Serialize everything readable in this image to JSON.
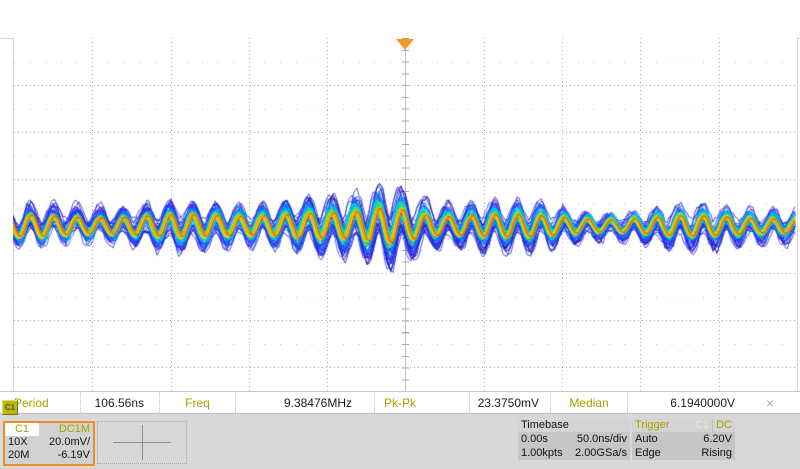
{
  "measurement_bar": {
    "measurements": [
      {
        "label": "Period",
        "value": "106.56ns"
      },
      {
        "label": "Freq",
        "value": "9.38476MHz"
      },
      {
        "label": "Pk-Pk",
        "value": "23.3750mV"
      },
      {
        "label": "Median",
        "value": "6.1940000V"
      }
    ],
    "channel_badge": "C1",
    "close_label": "×"
  },
  "channel_panel": {
    "name": "C1",
    "coupling": "DC1M",
    "probe": "10X",
    "volts_per_div": "20.0mV/",
    "bandwidth": "20M",
    "offset": "-6.19V"
  },
  "timebase_panel": {
    "title": "Timebase",
    "delay": "0.00s",
    "time_per_div": "50.0ns/div",
    "memory_depth": "1.00kpts",
    "sample_rate": "2.00GSa/s"
  },
  "trigger_panel": {
    "title": "Trigger",
    "source": "C1",
    "coupling": "DC",
    "mode": "Auto",
    "level": "6.20V",
    "type": "Edge",
    "slope": "Rising"
  },
  "waveform": {
    "kind": "persistence-heatmap-noisy-sine",
    "measured_frequency": "9.38476MHz",
    "colormap": [
      "#1818c8",
      "#2834ff",
      "#0090ff",
      "#00d8e0",
      "#10e890",
      "#70f030",
      "#e0f000",
      "#ffc800",
      "#ff7000",
      "#ff3000"
    ]
  },
  "colors": {
    "accent_orange": "#ef8c1e",
    "label_olive": "#a4a400",
    "trigger_marker_orange": "#f09a20",
    "trigger_source_text": "#dcebeb",
    "panel_gray": "#d8d8d8"
  }
}
